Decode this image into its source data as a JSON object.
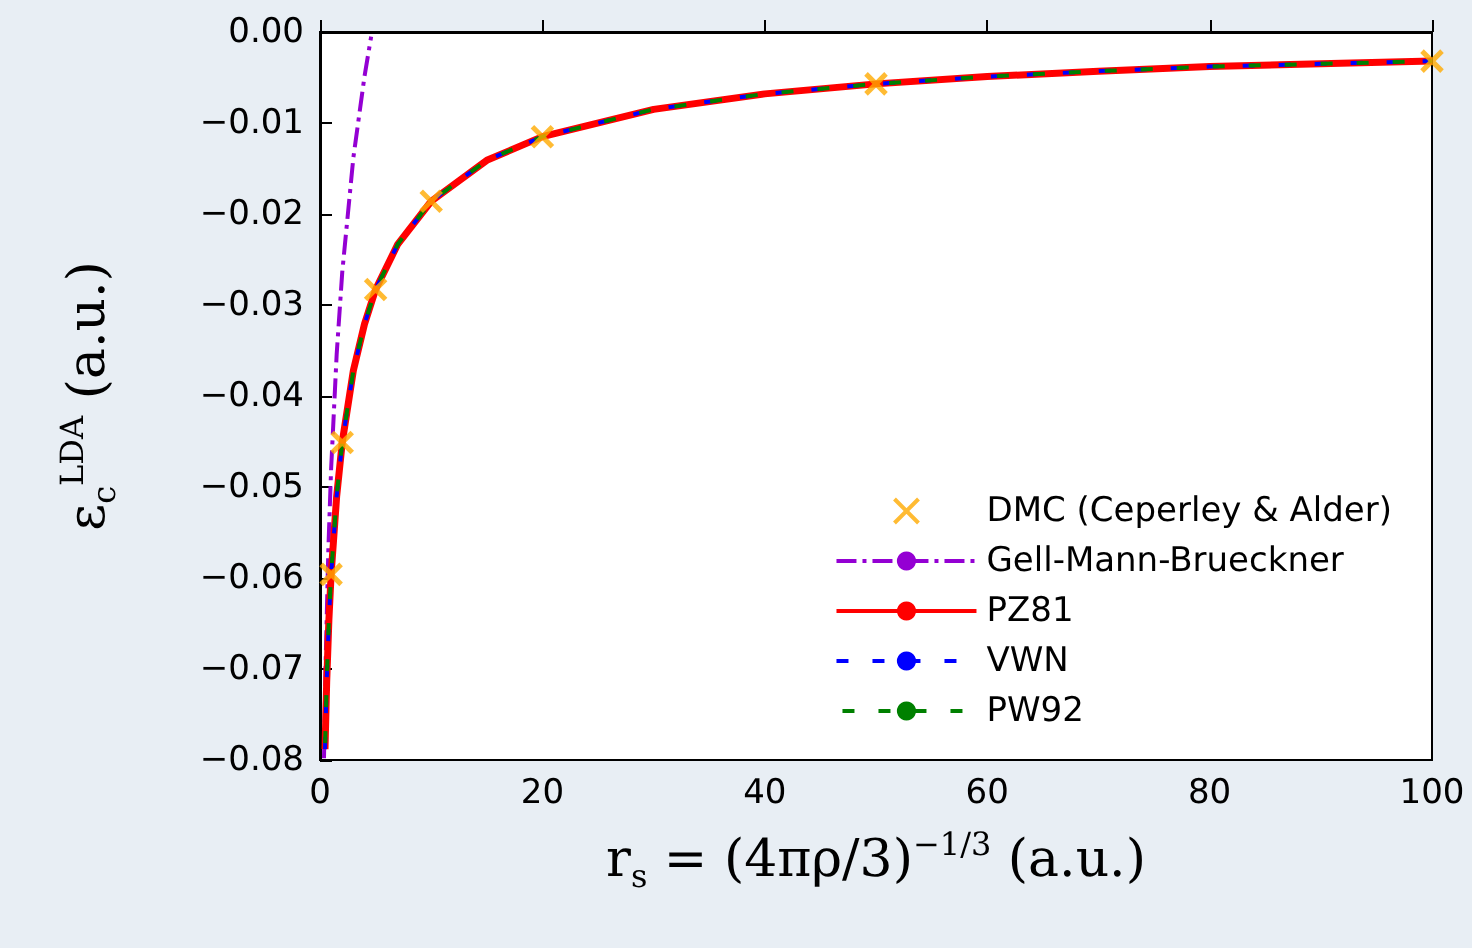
{
  "chart_data": {
    "type": "line",
    "xlabel": "r$_{s}$ = (4πρ/3)$^{−1/3}$ (a.u.)",
    "ylabel": "ε$_{c}$$^{LDA}$ (a.u.)",
    "xlim": [
      0,
      100
    ],
    "xticks": [
      0,
      20,
      40,
      60,
      80,
      100
    ],
    "ylim": [
      -0.08,
      0
    ],
    "yticks": [
      {
        "value": -0.08,
        "label": "−0.08"
      },
      {
        "value": -0.07,
        "label": "−0.07"
      },
      {
        "value": -0.06,
        "label": "−0.06"
      },
      {
        "value": -0.05,
        "label": "−0.05"
      },
      {
        "value": -0.04,
        "label": "−0.04"
      },
      {
        "value": -0.03,
        "label": "−0.03"
      },
      {
        "value": -0.02,
        "label": "−0.02"
      },
      {
        "value": -0.01,
        "label": "−0.01"
      },
      {
        "value": 0,
        "label": "0.00"
      }
    ],
    "grid": false,
    "legend": "bottom right",
    "series": [
      {
        "name": "DMC (Ceperley & Alder)",
        "type": "scatter",
        "marker": "cross",
        "color": "#ffaa00",
        "x": [
          1,
          2,
          5,
          10,
          20,
          50,
          100
        ],
        "values": [
          -0.0596,
          -0.0451,
          -0.0283,
          -0.0186,
          -0.0115,
          -0.0057,
          -0.0032
        ]
      },
      {
        "name": "Gell-Mann-Brueckner",
        "color": "#9400d3",
        "line_style": "dashdot",
        "x": [
          0.36,
          0.5,
          0.75,
          1,
          1.5,
          2,
          3,
          4,
          4.6
        ],
        "values": [
          -0.0798,
          -0.0696,
          -0.0569,
          -0.048,
          -0.0354,
          -0.0264,
          -0.0138,
          -0.0049,
          -0.0005
        ]
      },
      {
        "name": "PZ81",
        "color": "#ff0000",
        "line_style": "solid",
        "x": [
          0.45,
          0.6,
          0.8,
          1,
          1.5,
          2,
          3,
          4,
          5,
          7,
          10,
          15,
          20,
          30,
          40,
          50,
          60,
          70,
          80,
          90,
          100
        ],
        "values": [
          -0.0788,
          -0.0715,
          -0.0646,
          -0.0596,
          -0.051,
          -0.0451,
          -0.0372,
          -0.0321,
          -0.0283,
          -0.0233,
          -0.0186,
          -0.0141,
          -0.0115,
          -0.0085,
          -0.0068,
          -0.0057,
          -0.0049,
          -0.0043,
          -0.0038,
          -0.0035,
          -0.0032
        ]
      },
      {
        "name": "VWN",
        "color": "#0000ff",
        "line_style": "dashed",
        "x": [
          0.45,
          0.6,
          0.8,
          1,
          1.5,
          2,
          3,
          4,
          5,
          7,
          10,
          15,
          20,
          30,
          40,
          50,
          60,
          70,
          80,
          90,
          100
        ],
        "values": [
          -0.0788,
          -0.0715,
          -0.0646,
          -0.0596,
          -0.051,
          -0.0451,
          -0.0372,
          -0.0321,
          -0.0283,
          -0.0233,
          -0.0186,
          -0.0141,
          -0.0115,
          -0.0085,
          -0.0068,
          -0.0057,
          -0.0049,
          -0.0043,
          -0.0038,
          -0.0035,
          -0.0032
        ]
      },
      {
        "name": "PW92",
        "color": "#008000",
        "line_style": "dashed",
        "x": [
          0.45,
          0.6,
          0.8,
          1,
          1.5,
          2,
          3,
          4,
          5,
          7,
          10,
          15,
          20,
          30,
          40,
          50,
          60,
          70,
          80,
          90,
          100
        ],
        "values": [
          -0.0788,
          -0.0715,
          -0.0646,
          -0.0596,
          -0.051,
          -0.0451,
          -0.0372,
          -0.0321,
          -0.0283,
          -0.0233,
          -0.0186,
          -0.0141,
          -0.0115,
          -0.0085,
          -0.0068,
          -0.0057,
          -0.0049,
          -0.0043,
          -0.0038,
          -0.0035,
          -0.0032
        ]
      }
    ]
  }
}
